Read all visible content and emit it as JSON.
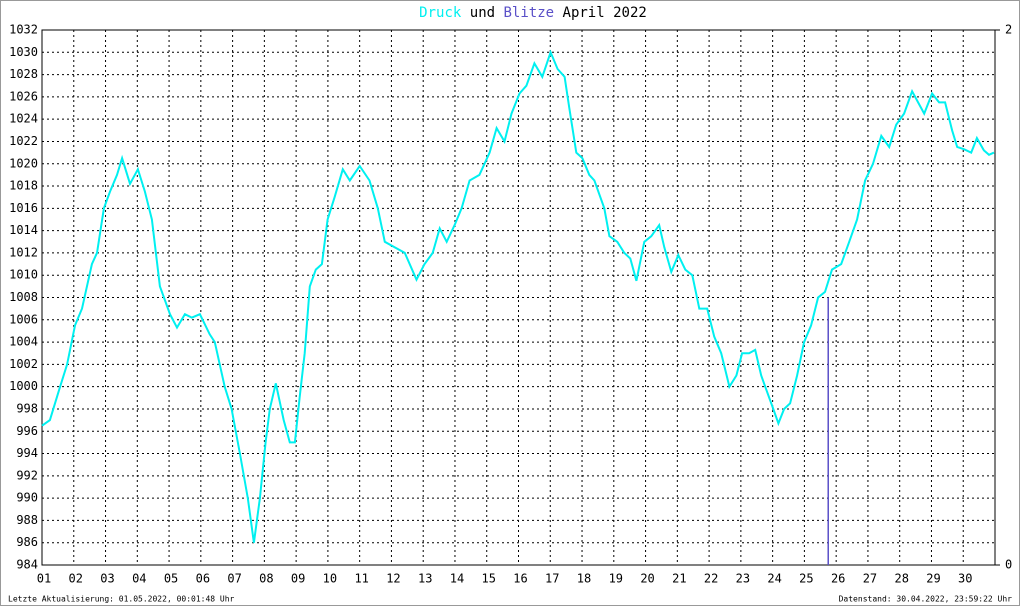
{
  "chart_data": {
    "type": "line",
    "title_join": "und",
    "title_suffix": "April 2022",
    "footer_left": "Letzte Aktualisierung: 01.05.2022, 00:01:48 Uhr",
    "footer_right": "Datenstand: 30.04.2022, 23:59:22 Uhr",
    "xlim": [
      1,
      31
    ],
    "xticks": [
      {
        "value": 1,
        "label": "01"
      },
      {
        "value": 2,
        "label": "02"
      },
      {
        "value": 3,
        "label": "03"
      },
      {
        "value": 4,
        "label": "04"
      },
      {
        "value": 5,
        "label": "05"
      },
      {
        "value": 6,
        "label": "06"
      },
      {
        "value": 7,
        "label": "07"
      },
      {
        "value": 8,
        "label": "08"
      },
      {
        "value": 9,
        "label": "09"
      },
      10,
      11,
      12,
      13,
      14,
      15,
      16,
      17,
      18,
      19,
      20,
      21,
      22,
      23,
      24,
      25,
      26,
      27,
      28,
      29,
      30
    ],
    "ylim": [
      984,
      1032
    ],
    "yticks": [
      984,
      986,
      988,
      990,
      992,
      994,
      996,
      998,
      1000,
      1002,
      1004,
      1006,
      1008,
      1010,
      1012,
      1014,
      1016,
      1018,
      1020,
      1022,
      1024,
      1026,
      1028,
      1030,
      1032
    ],
    "y2lim": [
      0,
      2
    ],
    "y2ticks": [
      0,
      2
    ],
    "grid": true,
    "series": [
      {
        "name": "Druck",
        "color": "#00f0f0",
        "type": "line",
        "x": [
          1.0,
          1.25,
          1.57,
          1.79,
          2.04,
          2.26,
          2.57,
          2.73,
          2.95,
          3.14,
          3.36,
          3.52,
          3.77,
          4.02,
          4.24,
          4.46,
          4.71,
          5.03,
          5.25,
          5.5,
          5.72,
          5.97,
          6.28,
          6.44,
          6.75,
          6.97,
          7.23,
          7.48,
          7.67,
          7.86,
          8.04,
          8.17,
          8.36,
          8.61,
          8.8,
          8.96,
          9.11,
          9.27,
          9.43,
          9.62,
          9.81,
          9.99,
          10.21,
          10.47,
          10.69,
          11.0,
          11.31,
          11.57,
          11.79,
          12.1,
          12.42,
          12.79,
          13.04,
          13.3,
          13.52,
          13.74,
          13.99,
          14.21,
          14.46,
          14.77,
          15.09,
          15.31,
          15.56,
          15.78,
          16.03,
          16.25,
          16.5,
          16.75,
          17.01,
          17.23,
          17.45,
          17.6,
          17.82,
          18.01,
          18.23,
          18.39,
          18.7,
          18.86,
          19.11,
          19.33,
          19.52,
          19.71,
          19.96,
          20.18,
          20.43,
          20.59,
          20.81,
          21.03,
          21.25,
          21.47,
          21.69,
          21.94,
          22.16,
          22.38,
          22.64,
          22.86,
          23.04,
          23.26,
          23.45,
          23.64,
          23.83,
          24.02,
          24.18,
          24.36,
          24.55,
          24.77,
          24.99,
          25.21,
          25.43,
          25.65,
          25.87,
          26.16,
          26.41,
          26.66,
          26.91,
          27.16,
          27.42,
          27.67,
          27.89,
          28.14,
          28.39,
          28.58,
          28.77,
          29.02,
          29.24,
          29.43,
          29.65,
          29.81,
          30.03,
          30.25,
          30.43,
          30.65,
          30.81,
          30.97
        ],
        "values": [
          996.5,
          997,
          1000,
          1002,
          1005.5,
          1007,
          1011,
          1012,
          1016,
          1017.5,
          1019,
          1020.5,
          1018.2,
          1019.5,
          1017.5,
          1015,
          1009,
          1006.5,
          1005.3,
          1006.5,
          1006.2,
          1006.5,
          1004.7,
          1004,
          1000,
          998,
          994,
          990,
          986,
          990,
          995,
          998,
          1000.3,
          997,
          995,
          995,
          999,
          1003,
          1009,
          1010.5,
          1011,
          1015,
          1017,
          1019.5,
          1018.5,
          1019.8,
          1018.5,
          1016,
          1013,
          1012.5,
          1012,
          1009.6,
          1011,
          1012,
          1014.2,
          1013,
          1014.5,
          1016,
          1018.5,
          1019,
          1021,
          1023.2,
          1022,
          1024.5,
          1026.3,
          1027,
          1029,
          1027.8,
          1030,
          1028.5,
          1027.8,
          1025,
          1021,
          1020.5,
          1019,
          1018.5,
          1016,
          1013.5,
          1013,
          1012,
          1011.5,
          1009.5,
          1013,
          1013.5,
          1014.5,
          1012.5,
          1010.3,
          1011.8,
          1010.5,
          1010,
          1007,
          1007,
          1004.5,
          1003,
          1000,
          1001,
          1003,
          1003,
          1003.3,
          1001,
          999.5,
          998,
          996.7,
          998,
          998.5,
          1001,
          1004,
          1005.5,
          1008,
          1008.5,
          1010.5,
          1011,
          1013,
          1015,
          1018.5,
          1020,
          1022.5,
          1021.5,
          1023.5,
          1024.5,
          1026.5,
          1025.5,
          1024.5,
          1026.3,
          1025.5,
          1025.5,
          1023,
          1021.5,
          1021.3,
          1021,
          1022.3,
          1021.2,
          1020.8,
          1021
        ]
      },
      {
        "name": "Blitze",
        "color": "#5a50c8",
        "type": "bar",
        "axis": "y2",
        "x": [
          25.75
        ],
        "values": [
          1
        ]
      }
    ]
  }
}
